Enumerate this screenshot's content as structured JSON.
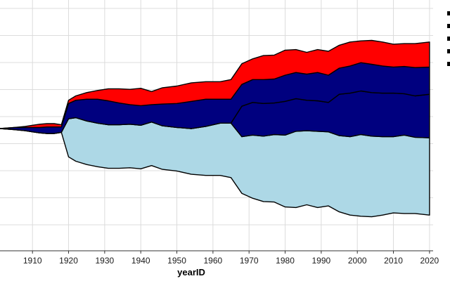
{
  "chart_data": {
    "type": "area",
    "subtype": "streamgraph",
    "title": "",
    "xlabel": "yearID",
    "ylabel": "",
    "xlim": [
      1901,
      2021
    ],
    "x_ticks": [
      1910,
      1920,
      1930,
      1940,
      1950,
      1960,
      1970,
      1980,
      1990,
      2000,
      2010,
      2020
    ],
    "grid": true,
    "legend": "right (cropped)",
    "x": [
      1901,
      1905,
      1908,
      1910,
      1912,
      1914,
      1916,
      1918,
      1920,
      1922,
      1925,
      1928,
      1931,
      1934,
      1937,
      1940,
      1943,
      1946,
      1950,
      1954,
      1958,
      1962,
      1965,
      1968,
      1971,
      1974,
      1977,
      1980,
      1983,
      1986,
      1989,
      1992,
      1995,
      1998,
      2001,
      2004,
      2007,
      2010,
      2013,
      2016,
      2020
    ],
    "series": [
      {
        "color": "#add8e6",
        "values": [
          0,
          0,
          0,
          0,
          0,
          0,
          0,
          0,
          35,
          40,
          40,
          40,
          40,
          40,
          40,
          40,
          40,
          40,
          40,
          42,
          45,
          48,
          50,
          52,
          58,
          60,
          62,
          66,
          70,
          68,
          70,
          68,
          70,
          72,
          75,
          74,
          72,
          70,
          72,
          70,
          71
        ]
      },
      {
        "color": "#00007f",
        "values": [
          0,
          0,
          0,
          0,
          0,
          0,
          0,
          0,
          0,
          0,
          0,
          0,
          0,
          0,
          0,
          0,
          0,
          0,
          0,
          0,
          0,
          0,
          0,
          28,
          30,
          30,
          29,
          31,
          30,
          28,
          28,
          27,
          38,
          40,
          40,
          40,
          40,
          40,
          38,
          38,
          40
        ]
      },
      {
        "color": "#00007f",
        "values": [
          0,
          2,
          3,
          4,
          5,
          6,
          6,
          5,
          14,
          16,
          20,
          22,
          22,
          20,
          18,
          18,
          16,
          20,
          22,
          25,
          25,
          22,
          22,
          20,
          21,
          22,
          22,
          24,
          24,
          24,
          26,
          25,
          24,
          25,
          26,
          26,
          25,
          24,
          25,
          26,
          25
        ]
      },
      {
        "color": "#ff0000",
        "values": [
          0,
          0,
          1,
          2,
          3,
          3,
          3,
          2,
          3,
          4,
          6,
          8,
          11,
          13,
          14,
          16,
          12,
          15,
          16,
          17,
          16,
          16,
          18,
          19,
          19,
          22,
          22,
          23,
          21,
          20,
          21,
          22,
          21,
          22,
          20,
          22,
          22,
          21,
          21,
          22,
          23
        ]
      }
    ]
  }
}
